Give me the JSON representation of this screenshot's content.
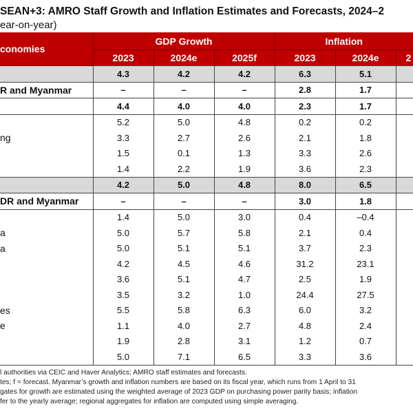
{
  "title": "SEAN+3: AMRO Staff Growth and Inflation Estimates and Forecasts, 2024–2",
  "subtitle": "ear-on-year)",
  "header": {
    "economies": "conomies",
    "gdp_group": "GDP Growth",
    "inflation_group": "Inflation",
    "years": [
      "2023",
      "2024e",
      "2025f",
      "2023",
      "2024e",
      "2"
    ]
  },
  "colors": {
    "header_red": "#c00000",
    "aggregate_grey": "#d9d9d9"
  },
  "rows": [
    {
      "label": "",
      "values": [
        "4.3",
        "4.2",
        "4.2",
        "6.3",
        "5.1"
      ],
      "style": "grey"
    },
    {
      "label": "R and Myanmar",
      "values": [
        "–",
        "–",
        "–",
        "2.8",
        "1.7"
      ],
      "style": "agg"
    },
    {
      "label": "",
      "values": [
        "4.4",
        "4.0",
        "4.0",
        "2.3",
        "1.7"
      ],
      "style": "agg"
    },
    {
      "label": "",
      "values": [
        "5.2",
        "5.0",
        "4.8",
        "0.2",
        "0.2"
      ],
      "style": "first"
    },
    {
      "label": "ng",
      "values": [
        "3.3",
        "2.7",
        "2.6",
        "2.1",
        "1.8"
      ],
      "style": ""
    },
    {
      "label": "",
      "values": [
        "1.5",
        "0.1",
        "1.3",
        "3.3",
        "2.6"
      ],
      "style": ""
    },
    {
      "label": "",
      "values": [
        "1.4",
        "2.2",
        "1.9",
        "3.6",
        "2.3"
      ],
      "style": ""
    },
    {
      "label": "",
      "values": [
        "4.2",
        "5.0",
        "4.8",
        "8.0",
        "6.5"
      ],
      "style": "grey"
    },
    {
      "label": "DR and Myanmar",
      "values": [
        "–",
        "–",
        "–",
        "3.0",
        "1.8"
      ],
      "style": "agg"
    },
    {
      "label": "",
      "values": [
        "1.4",
        "5.0",
        "3.0",
        "0.4",
        "–0.4"
      ],
      "style": "first"
    },
    {
      "label": "a",
      "values": [
        "5.0",
        "5.7",
        "5.8",
        "2.1",
        "0.4"
      ],
      "style": ""
    },
    {
      "label": "a",
      "values": [
        "5.0",
        "5.1",
        "5.1",
        "3.7",
        "2.3"
      ],
      "style": ""
    },
    {
      "label": "",
      "values": [
        "4.2",
        "4.5",
        "4.6",
        "31.2",
        "23.1"
      ],
      "style": ""
    },
    {
      "label": "",
      "values": [
        "3.6",
        "5.1",
        "4.7",
        "2.5",
        "1.9"
      ],
      "style": ""
    },
    {
      "label": "",
      "values": [
        "3.5",
        "3.2",
        "1.0",
        "24.4",
        "27.5"
      ],
      "style": ""
    },
    {
      "label": "es",
      "values": [
        "5.5",
        "5.8",
        "6.3",
        "6.0",
        "3.2"
      ],
      "style": ""
    },
    {
      "label": "e",
      "values": [
        "1.1",
        "4.0",
        "2.7",
        "4.8",
        "2.4"
      ],
      "style": ""
    },
    {
      "label": "",
      "values": [
        "1.9",
        "2.8",
        "3.1",
        "1.2",
        "0.7"
      ],
      "style": ""
    },
    {
      "label": "",
      "values": [
        "5.0",
        "7.1",
        "6.5",
        "3.3",
        "3.6"
      ],
      "style": "last"
    }
  ],
  "notes": [
    "l authorities via CEIC and Haver Analytics; AMRO staff estimates and forecasts.",
    "tes; f = forecast. Myanmar’s growth and inflation numbers are based on its fiscal year, which runs from 1 April to 31",
    "gates for growth are estimated using the weighted average of 2023 GDP on purchasing power parity basis; inflation",
    "fer to the yearly average; regional aggregates for inflation are computed using simple averaging."
  ]
}
